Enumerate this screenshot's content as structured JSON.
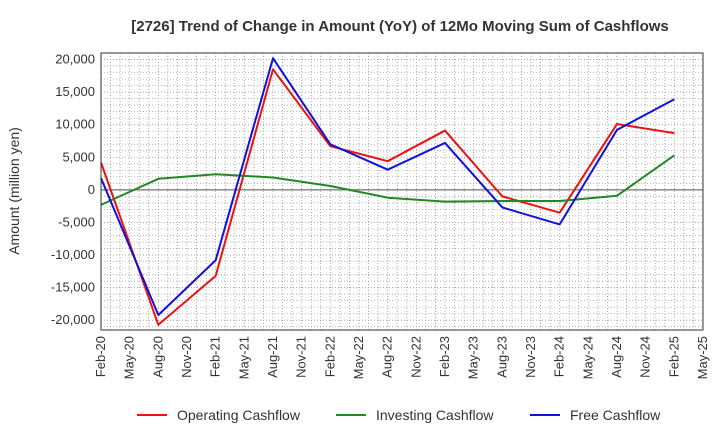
{
  "chart_data": {
    "type": "line",
    "title": "[2726]  Trend of Change in Amount (YoY) of 12Mo Moving Sum of Cashflows",
    "xlabel": "",
    "ylabel": "Amount (million yen)",
    "ylim": [
      -21500,
      21000
    ],
    "yticks": [
      20000,
      15000,
      10000,
      5000,
      0,
      -5000,
      -10000,
      -15000,
      -20000
    ],
    "ytick_labels": [
      "20,000",
      "15,000",
      "10,000",
      "5,000",
      "0",
      "-5,000",
      "-10,000",
      "-15,000",
      "-20,000"
    ],
    "xtick_labels": [
      "Feb-20",
      "May-20",
      "Aug-20",
      "Nov-20",
      "Feb-21",
      "May-21",
      "Aug-21",
      "Nov-21",
      "Feb-22",
      "May-22",
      "Aug-22",
      "Nov-22",
      "Feb-23",
      "May-23",
      "Aug-23",
      "Nov-23",
      "Feb-24",
      "May-24",
      "Aug-24",
      "Nov-24",
      "Feb-25",
      "May-25"
    ],
    "grid": true,
    "legend_position": "bottom",
    "series": [
      {
        "name": "Operating Cashflow",
        "color": "#ee1111",
        "points": [
          [
            "Feb-20",
            4200
          ],
          [
            "Aug-20",
            -20700
          ],
          [
            "Feb-21",
            -13200
          ],
          [
            "Aug-21",
            18500
          ],
          [
            "Feb-22",
            6700
          ],
          [
            "Aug-22",
            4400
          ],
          [
            "Feb-23",
            9100
          ],
          [
            "Aug-23",
            -1000
          ],
          [
            "Feb-24",
            -3500
          ],
          [
            "Aug-24",
            10100
          ],
          [
            "Feb-25",
            8700
          ]
        ]
      },
      {
        "name": "Investing Cashflow",
        "color": "#228822",
        "points": [
          [
            "Feb-20",
            -2300
          ],
          [
            "Aug-20",
            1700
          ],
          [
            "Feb-21",
            2400
          ],
          [
            "Aug-21",
            1900
          ],
          [
            "Feb-22",
            600
          ],
          [
            "Aug-22",
            -1200
          ],
          [
            "Feb-23",
            -1800
          ],
          [
            "Aug-23",
            -1700
          ],
          [
            "Feb-24",
            -1700
          ],
          [
            "Aug-24",
            -900
          ],
          [
            "Feb-25",
            5300
          ]
        ]
      },
      {
        "name": "Free Cashflow",
        "color": "#1111dd",
        "points": [
          [
            "Feb-20",
            1800
          ],
          [
            "Aug-20",
            -19200
          ],
          [
            "Feb-21",
            -10800
          ],
          [
            "Aug-21",
            20200
          ],
          [
            "Feb-22",
            7000
          ],
          [
            "Aug-22",
            3100
          ],
          [
            "Feb-23",
            7200
          ],
          [
            "Aug-23",
            -2700
          ],
          [
            "Feb-24",
            -5300
          ],
          [
            "Aug-24",
            9200
          ],
          [
            "Feb-25",
            13900
          ]
        ]
      }
    ]
  }
}
